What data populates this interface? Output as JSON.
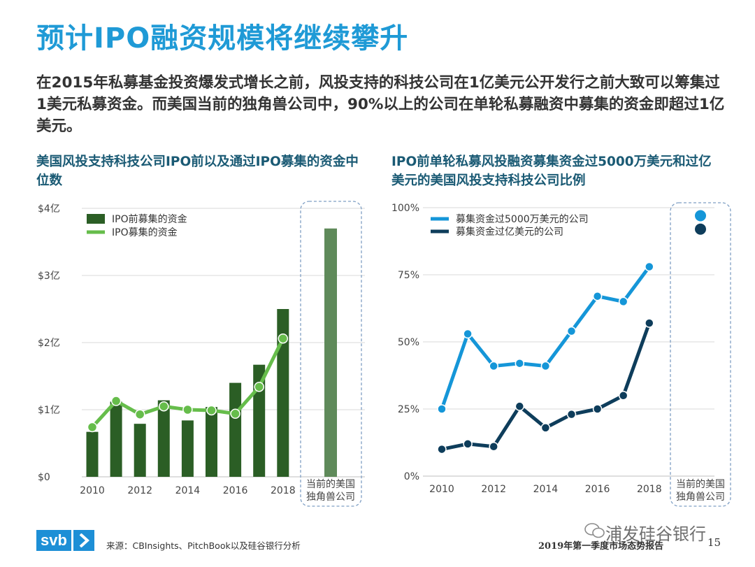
{
  "header": {
    "title": "预计IPO融资规模将继续攀升",
    "subtitle": "在2015年私募基金投资爆发式增长之前，风投支持的科技公司在1亿美元公开发行之前大致可以筹集过1美元私募资金。而美国当前的独角兽公司中，90%以上的公司在单轮私募融资中募集的资金即超过1亿美元。"
  },
  "chart_data": [
    {
      "type": "bar",
      "title": "美国风投支持科技公司IPO前以及通过IPO募集的资金中位数",
      "categories": [
        "2010",
        "2011",
        "2012",
        "2013",
        "2014",
        "2015",
        "2016",
        "2017",
        "2018"
      ],
      "x_tick_labels": [
        "2010",
        "2012",
        "2014",
        "2016",
        "2018"
      ],
      "highlight_category": "当前的美国独角兽公司",
      "ylim": [
        0,
        4
      ],
      "y_ticks": [
        0,
        1,
        2,
        3,
        4
      ],
      "y_tick_labels": [
        "$0",
        "$1亿",
        "$2亿",
        "$3亿",
        "$4亿"
      ],
      "series": [
        {
          "name": "IPO前募集的资金",
          "type": "bar",
          "color": "#2b5e25",
          "values": [
            0.67,
            1.12,
            0.79,
            1.14,
            0.84,
            1.04,
            1.4,
            1.67,
            2.5
          ],
          "highlight_value": 3.7,
          "highlight_color": "#5f8a5a"
        },
        {
          "name": "IPO募集的资金",
          "type": "line",
          "color": "#66bd4b",
          "values": [
            0.74,
            1.13,
            0.93,
            1.05,
            1.0,
            0.99,
            0.94,
            1.34,
            2.06
          ]
        }
      ],
      "grid": true,
      "legend_position": "top-left"
    },
    {
      "type": "line",
      "title": "IPO前单轮私募风投融资募集资金过5000万美元和过亿美元的美国风投支持科技公司比例",
      "categories": [
        "2010",
        "2011",
        "2012",
        "2013",
        "2014",
        "2015",
        "2016",
        "2017",
        "2018"
      ],
      "x_tick_labels": [
        "2010",
        "2012",
        "2014",
        "2016",
        "2018"
      ],
      "highlight_category": "当前的美国独角兽公司",
      "ylim": [
        0,
        100
      ],
      "y_ticks": [
        0,
        25,
        50,
        75,
        100
      ],
      "y_tick_labels": [
        "0%",
        "25%",
        "50%",
        "75%",
        "100%"
      ],
      "series": [
        {
          "name": "募集资金过5000万美元的公司",
          "color": "#1596d8",
          "values": [
            25,
            53,
            41,
            42,
            41,
            54,
            67,
            65,
            78
          ],
          "highlight_value": 97
        },
        {
          "name": "募集资金过亿美元的公司",
          "color": "#0e3d5b",
          "values": [
            10,
            12,
            11,
            26,
            18,
            23,
            25,
            30,
            57
          ],
          "highlight_value": 92
        }
      ],
      "grid": true,
      "legend_position": "top-left"
    }
  ],
  "footer": {
    "logo_text": "svb",
    "source": "来源：CBInsights、PitchBook以及硅谷银行分析",
    "report": "2019年第一季度市场态势报告",
    "page_number": "15",
    "watermark": "浦发硅谷银行"
  }
}
